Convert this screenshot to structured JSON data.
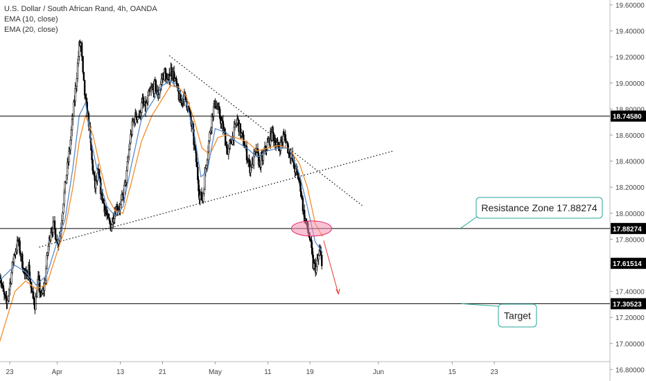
{
  "legend": {
    "title": "U.S. Dollar / South African Rand, 4h, OANDA",
    "ema10": "EMA (10, close)",
    "ema20": "EMA (20, close)"
  },
  "colors": {
    "ema10": "#5b8cc9",
    "ema20": "#f28c28",
    "level_line": "#000000",
    "annotation_border": "#26a69a",
    "zone_fill": "#f48fb1",
    "arrow": "#e53935"
  },
  "chart_data": {
    "type": "candlestick",
    "title": "U.S. Dollar / South African Rand, 4h, OANDA",
    "x_ticks": [
      {
        "label": "23",
        "day": 0
      },
      {
        "label": "Apr",
        "day": 9
      },
      {
        "label": "13",
        "day": 21
      },
      {
        "label": "21",
        "day": 29
      },
      {
        "label": "May",
        "day": 39
      },
      {
        "label": "11",
        "day": 49
      },
      {
        "label": "19",
        "day": 57
      },
      {
        "label": "Jun",
        "day": 70
      },
      {
        "label": "15",
        "day": 84
      },
      {
        "label": "23",
        "day": 92
      }
    ],
    "y_ticks": [
      16.8,
      17.0,
      17.2,
      17.4,
      17.6,
      17.8,
      18.0,
      18.2,
      18.4,
      18.6,
      18.8,
      19.0,
      19.2,
      19.4,
      19.6
    ],
    "ylim": [
      16.78,
      19.64
    ],
    "price_tags": [
      "18.74580",
      "17.88274",
      "17.61514",
      "17.30523"
    ],
    "horizontal_levels": [
      18.7458,
      17.88274,
      17.30523
    ],
    "current_price": 17.61514,
    "price_path": [
      [
        -2.0,
        17.55
      ],
      [
        -1.2,
        17.38
      ],
      [
        -0.6,
        17.3
      ],
      [
        0.2,
        17.5
      ],
      [
        0.8,
        17.68
      ],
      [
        1.6,
        17.78
      ],
      [
        2.4,
        17.62
      ],
      [
        3.0,
        17.5
      ],
      [
        3.6,
        17.58
      ],
      [
        4.2,
        17.38
      ],
      [
        4.8,
        17.3
      ],
      [
        5.4,
        17.48
      ],
      [
        6.0,
        17.35
      ],
      [
        6.6,
        17.45
      ],
      [
        7.2,
        17.7
      ],
      [
        7.8,
        17.88
      ],
      [
        8.4,
        17.9
      ],
      [
        9.0,
        17.78
      ],
      [
        9.6,
        17.85
      ],
      [
        10.2,
        18.1
      ],
      [
        10.8,
        18.3
      ],
      [
        11.4,
        18.5
      ],
      [
        12.0,
        18.75
      ],
      [
        12.6,
        19.0
      ],
      [
        13.2,
        19.28
      ],
      [
        13.5,
        19.3
      ],
      [
        13.9,
        19.05
      ],
      [
        14.4,
        18.85
      ],
      [
        15.0,
        18.7
      ],
      [
        15.6,
        18.4
      ],
      [
        16.2,
        18.2
      ],
      [
        16.8,
        18.3
      ],
      [
        17.4,
        18.15
      ],
      [
        18.0,
        18.05
      ],
      [
        18.6,
        17.95
      ],
      [
        19.2,
        17.9
      ],
      [
        19.8,
        18.0
      ],
      [
        20.4,
        18.05
      ],
      [
        21.0,
        18.05
      ],
      [
        21.6,
        18.15
      ],
      [
        22.2,
        18.3
      ],
      [
        22.8,
        18.55
      ],
      [
        23.4,
        18.7
      ],
      [
        24.0,
        18.75
      ],
      [
        24.6,
        18.75
      ],
      [
        25.2,
        18.85
      ],
      [
        25.8,
        18.8
      ],
      [
        26.4,
        18.9
      ],
      [
        27.0,
        18.95
      ],
      [
        27.6,
        18.98
      ],
      [
        28.2,
        18.9
      ],
      [
        28.8,
        19.02
      ],
      [
        29.4,
        19.08
      ],
      [
        30.0,
        19.0
      ],
      [
        30.6,
        19.1
      ],
      [
        31.2,
        19.05
      ],
      [
        31.8,
        18.95
      ],
      [
        32.4,
        18.85
      ],
      [
        33.0,
        18.9
      ],
      [
        33.6,
        18.85
      ],
      [
        34.2,
        18.75
      ],
      [
        34.8,
        18.6
      ],
      [
        35.4,
        18.4
      ],
      [
        36.0,
        18.15
      ],
      [
        36.6,
        18.1
      ],
      [
        37.2,
        18.35
      ],
      [
        37.8,
        18.55
      ],
      [
        38.4,
        18.75
      ],
      [
        39.0,
        18.85
      ],
      [
        39.6,
        18.78
      ],
      [
        40.2,
        18.7
      ],
      [
        40.8,
        18.6
      ],
      [
        41.4,
        18.45
      ],
      [
        42.0,
        18.55
      ],
      [
        42.6,
        18.62
      ],
      [
        43.2,
        18.72
      ],
      [
        43.8,
        18.62
      ],
      [
        44.4,
        18.55
      ],
      [
        45.0,
        18.45
      ],
      [
        45.6,
        18.35
      ],
      [
        46.2,
        18.4
      ],
      [
        46.8,
        18.48
      ],
      [
        47.4,
        18.38
      ],
      [
        48.0,
        18.42
      ],
      [
        48.6,
        18.5
      ],
      [
        49.2,
        18.55
      ],
      [
        49.8,
        18.62
      ],
      [
        50.4,
        18.55
      ],
      [
        51.0,
        18.5
      ],
      [
        51.6,
        18.55
      ],
      [
        52.2,
        18.6
      ],
      [
        52.8,
        18.5
      ],
      [
        53.4,
        18.45
      ],
      [
        54.0,
        18.35
      ],
      [
        54.6,
        18.3
      ],
      [
        55.2,
        18.2
      ],
      [
        55.8,
        18.0
      ],
      [
        56.4,
        17.9
      ],
      [
        57.0,
        17.8
      ],
      [
        57.6,
        17.6
      ],
      [
        58.2,
        17.58
      ],
      [
        58.8,
        17.7
      ],
      [
        59.4,
        17.62
      ]
    ],
    "ema10": [
      [
        -2.0,
        17.48
      ],
      [
        1.0,
        17.6
      ],
      [
        3.0,
        17.55
      ],
      [
        5.0,
        17.45
      ],
      [
        7.0,
        17.52
      ],
      [
        9.0,
        17.78
      ],
      [
        10.5,
        17.95
      ],
      [
        12.0,
        18.35
      ],
      [
        13.2,
        18.75
      ],
      [
        14.4,
        18.85
      ],
      [
        15.5,
        18.55
      ],
      [
        17.0,
        18.25
      ],
      [
        18.5,
        18.05
      ],
      [
        20.0,
        17.98
      ],
      [
        21.5,
        18.05
      ],
      [
        23.0,
        18.35
      ],
      [
        25.0,
        18.72
      ],
      [
        27.0,
        18.85
      ],
      [
        29.0,
        18.98
      ],
      [
        30.5,
        19.02
      ],
      [
        32.0,
        18.95
      ],
      [
        33.5,
        18.85
      ],
      [
        35.0,
        18.62
      ],
      [
        36.3,
        18.28
      ],
      [
        37.5,
        18.32
      ],
      [
        39.0,
        18.65
      ],
      [
        41.0,
        18.62
      ],
      [
        43.0,
        18.55
      ],
      [
        45.0,
        18.5
      ],
      [
        47.0,
        18.43
      ],
      [
        49.0,
        18.48
      ],
      [
        51.0,
        18.5
      ],
      [
        53.0,
        18.5
      ],
      [
        55.0,
        18.3
      ],
      [
        56.5,
        18.05
      ],
      [
        58.0,
        17.78
      ],
      [
        59.4,
        17.7
      ]
    ],
    "ema20": [
      [
        -2.0,
        17.0
      ],
      [
        1.0,
        17.4
      ],
      [
        3.0,
        17.48
      ],
      [
        5.0,
        17.42
      ],
      [
        7.0,
        17.45
      ],
      [
        9.0,
        17.7
      ],
      [
        10.5,
        17.88
      ],
      [
        12.0,
        18.2
      ],
      [
        13.2,
        18.55
      ],
      [
        14.4,
        18.75
      ],
      [
        15.8,
        18.6
      ],
      [
        17.2,
        18.35
      ],
      [
        18.6,
        18.12
      ],
      [
        20.0,
        18.02
      ],
      [
        21.5,
        18.0
      ],
      [
        23.0,
        18.22
      ],
      [
        25.0,
        18.55
      ],
      [
        27.0,
        18.75
      ],
      [
        29.0,
        18.88
      ],
      [
        30.5,
        18.98
      ],
      [
        32.0,
        18.97
      ],
      [
        33.5,
        18.9
      ],
      [
        35.0,
        18.72
      ],
      [
        36.5,
        18.5
      ],
      [
        38.0,
        18.45
      ],
      [
        39.5,
        18.58
      ],
      [
        41.0,
        18.6
      ],
      [
        43.0,
        18.58
      ],
      [
        45.0,
        18.55
      ],
      [
        47.0,
        18.48
      ],
      [
        49.0,
        18.5
      ],
      [
        51.0,
        18.52
      ],
      [
        53.0,
        18.5
      ],
      [
        55.0,
        18.38
      ],
      [
        56.5,
        18.2
      ],
      [
        58.0,
        17.92
      ],
      [
        59.4,
        17.82
      ]
    ],
    "trendlines": [
      {
        "name": "descending",
        "from": [
          30.3,
          19.21
        ],
        "to": [
          67.2,
          18.05
        ]
      },
      {
        "name": "ascending",
        "from": [
          5.6,
          17.74
        ],
        "to": [
          73.0,
          18.48
        ]
      }
    ],
    "annotations": [
      {
        "text": "Resistance Zone 17.88274",
        "price": 17.88274
      },
      {
        "text": "Target",
        "price": 17.30523
      }
    ]
  }
}
